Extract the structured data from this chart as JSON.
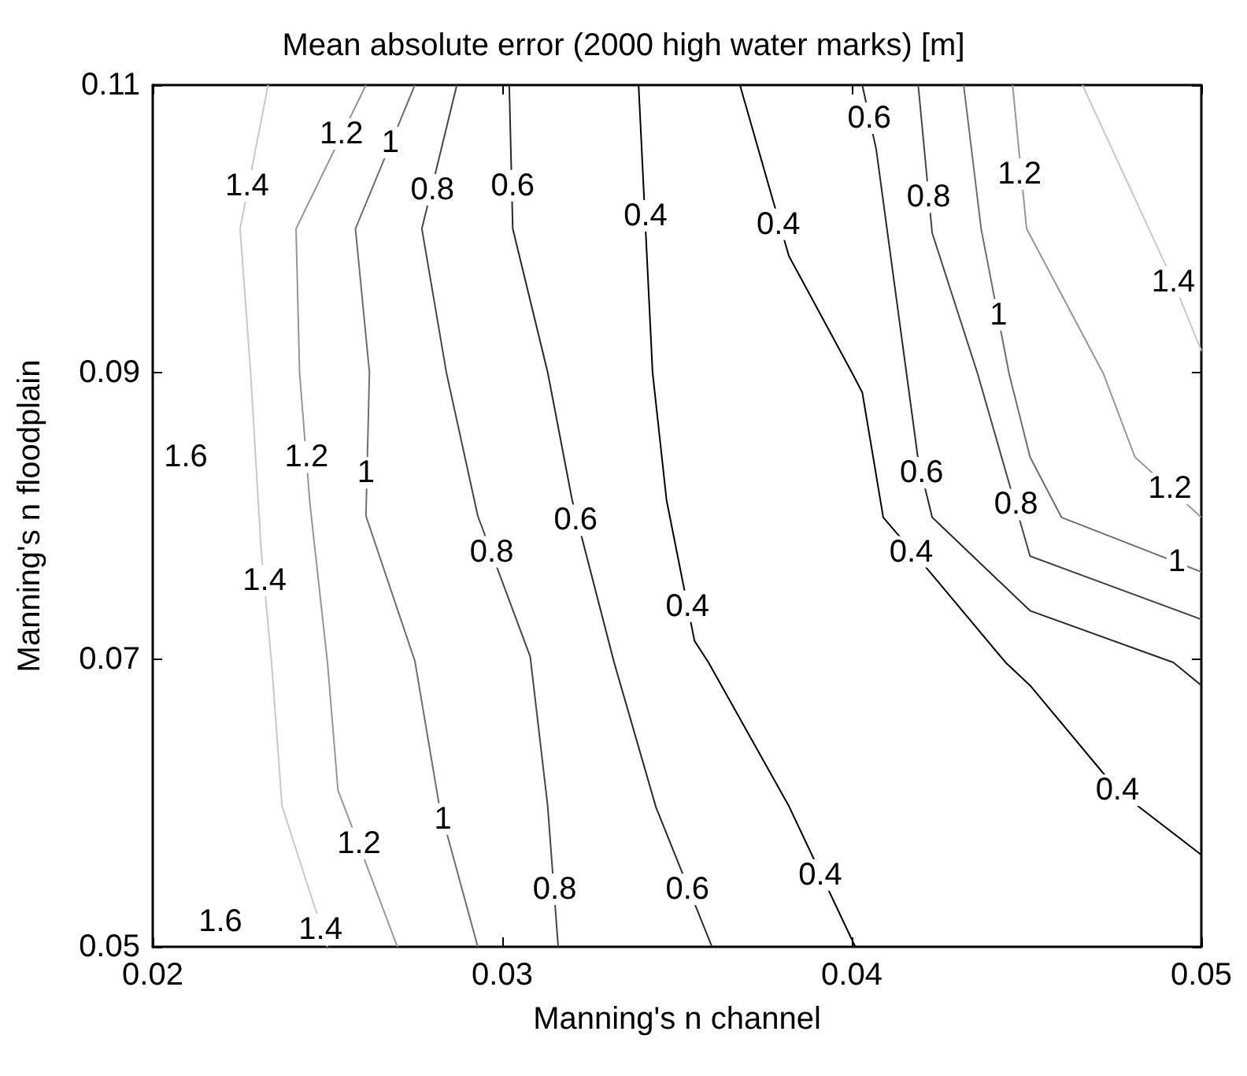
{
  "chart_data": {
    "type": "line",
    "title": "Mean absolute error (2000 high water marks) [m]",
    "xlabel": "Manning's n channel",
    "ylabel": "Manning's n floodplain",
    "xlim": [
      0.02,
      0.05
    ],
    "xticks": [
      0.02,
      0.03,
      0.04,
      0.05
    ],
    "ylim": [
      0.05,
      0.11
    ],
    "yticks": [
      0.05,
      0.07,
      0.09,
      0.11
    ],
    "grid": false,
    "marker": "none",
    "line_style": "solid",
    "series": [
      {
        "color": "#c8c8c8",
        "x": [
          0.0233,
          0.0225,
          0.0228,
          0.0231,
          0.0234,
          0.0237,
          0.025
        ],
        "values": [
          0.11,
          0.1,
          0.09,
          0.0777,
          0.0698,
          0.0598,
          0.05
        ]
      },
      {
        "color": "#969696",
        "x": [
          0.0261,
          0.0241,
          0.0242,
          0.0245,
          0.025,
          0.0253,
          0.0261,
          0.027
        ],
        "values": [
          0.11,
          0.1,
          0.09,
          0.0808,
          0.0698,
          0.0609,
          0.0558,
          0.05
        ]
      },
      {
        "color": "#6e6e6e",
        "x": [
          0.0275,
          0.0258,
          0.0262,
          0.0261,
          0.0275,
          0.0282,
          0.0293
        ],
        "values": [
          0.11,
          0.1,
          0.09,
          0.08,
          0.0699,
          0.0598,
          0.05
        ]
      },
      {
        "color": "#464646",
        "x": [
          0.0287,
          0.0277,
          0.0284,
          0.0293,
          0.0308,
          0.0313,
          0.0316
        ],
        "values": [
          0.11,
          0.1,
          0.09,
          0.08,
          0.0702,
          0.0598,
          0.05
        ]
      },
      {
        "color": "#282828",
        "x": [
          0.0302,
          0.0303,
          0.0313,
          0.032,
          0.0332,
          0.0344,
          0.036
        ],
        "values": [
          0.11,
          0.1,
          0.09,
          0.0811,
          0.0698,
          0.0597,
          0.05
        ]
      },
      {
        "color": "#000000",
        "x": [
          0.0339,
          0.0343,
          0.0347,
          0.0355,
          0.0359,
          0.0382,
          0.0401
        ],
        "values": [
          0.11,
          0.09,
          0.0811,
          0.0713,
          0.0698,
          0.0598,
          0.05
        ]
      },
      {
        "color": "#000000",
        "x": [
          0.0368,
          0.0382,
          0.04,
          0.0403,
          0.0409,
          0.0422,
          0.0444,
          0.0451,
          0.0476,
          0.05
        ],
        "values": [
          0.11,
          0.0981,
          0.09,
          0.0886,
          0.0799,
          0.0762,
          0.0698,
          0.0682,
          0.0609,
          0.0564
        ]
      },
      {
        "color": "#282828",
        "x": [
          0.0403,
          0.0407,
          0.0419,
          0.0423,
          0.0451,
          0.0492,
          0.05
        ],
        "values": [
          0.11,
          0.1055,
          0.0839,
          0.0799,
          0.0734,
          0.0698,
          0.0682
        ]
      },
      {
        "color": "#464646",
        "x": [
          0.0419,
          0.0423,
          0.0436,
          0.0451,
          0.05
        ],
        "values": [
          0.11,
          0.0997,
          0.0899,
          0.0772,
          0.0728
        ]
      },
      {
        "color": "#6e6e6e",
        "x": [
          0.0432,
          0.0437,
          0.0445,
          0.0451,
          0.046,
          0.05
        ],
        "values": [
          0.11,
          0.1,
          0.0899,
          0.0841,
          0.0799,
          0.0761
        ]
      },
      {
        "color": "#969696",
        "x": [
          0.0446,
          0.045,
          0.0472,
          0.0481,
          0.05
        ],
        "values": [
          0.11,
          0.1,
          0.0899,
          0.0841,
          0.0799
        ]
      },
      {
        "color": "#c8c8c8",
        "x": [
          0.0466,
          0.0492,
          0.05
        ],
        "values": [
          0.11,
          0.0963,
          0.0915
        ]
      }
    ],
    "annotations": [
      {
        "text": "1.4",
        "x": 0.0227,
        "y": 0.103
      },
      {
        "text": "1.2",
        "x": 0.0254,
        "y": 0.1066
      },
      {
        "text": "1",
        "x": 0.0268,
        "y": 0.106
      },
      {
        "text": "0.8",
        "x": 0.028,
        "y": 0.1027
      },
      {
        "text": "0.6",
        "x": 0.0303,
        "y": 0.103
      },
      {
        "text": "0.4",
        "x": 0.0341,
        "y": 0.1009
      },
      {
        "text": "0.4",
        "x": 0.0379,
        "y": 0.1003
      },
      {
        "text": "0.6",
        "x": 0.0405,
        "y": 0.1077
      },
      {
        "text": "0.8",
        "x": 0.0422,
        "y": 0.1022
      },
      {
        "text": "1",
        "x": 0.0442,
        "y": 0.094
      },
      {
        "text": "1.2",
        "x": 0.0448,
        "y": 0.1038
      },
      {
        "text": "1.4",
        "x": 0.0492,
        "y": 0.0963
      },
      "1.6",
      {
        "text": "1.2",
        "x": 0.0244,
        "y": 0.0841
      },
      {
        "text": "1",
        "x": 0.0261,
        "y": 0.083
      },
      {
        "text": "1.4",
        "x": 0.0232,
        "y": 0.0755
      },
      {
        "text": "0.8",
        "x": 0.0297,
        "y": 0.0775
      },
      {
        "text": "0.6",
        "x": 0.0321,
        "y": 0.0797
      },
      {
        "text": "0.4",
        "x": 0.0353,
        "y": 0.0737
      },
      {
        "text": "0.6",
        "x": 0.042,
        "y": 0.083
      },
      {
        "text": "0.4",
        "x": 0.0417,
        "y": 0.0775
      },
      {
        "text": "0.8",
        "x": 0.0447,
        "y": 0.0808
      },
      {
        "text": "1",
        "x": 0.0493,
        "y": 0.0768
      },
      {
        "text": "1.2",
        "x": 0.0491,
        "y": 0.0819
      },
      "1.6",
      {
        "text": "1.4",
        "x": 0.0248,
        "y": 0.0512
      },
      {
        "text": "1.2",
        "x": 0.0259,
        "y": 0.0572
      },
      {
        "text": "1",
        "x": 0.0283,
        "y": 0.0589
      },
      {
        "text": "0.8",
        "x": 0.0315,
        "y": 0.054
      },
      {
        "text": "0.6",
        "x": 0.0353,
        "y": 0.054
      },
      {
        "text": "0.4",
        "x": 0.0391,
        "y": 0.055
      },
      {
        "text": "0.4",
        "x": 0.0476,
        "y": 0.0609
      }
    ]
  }
}
